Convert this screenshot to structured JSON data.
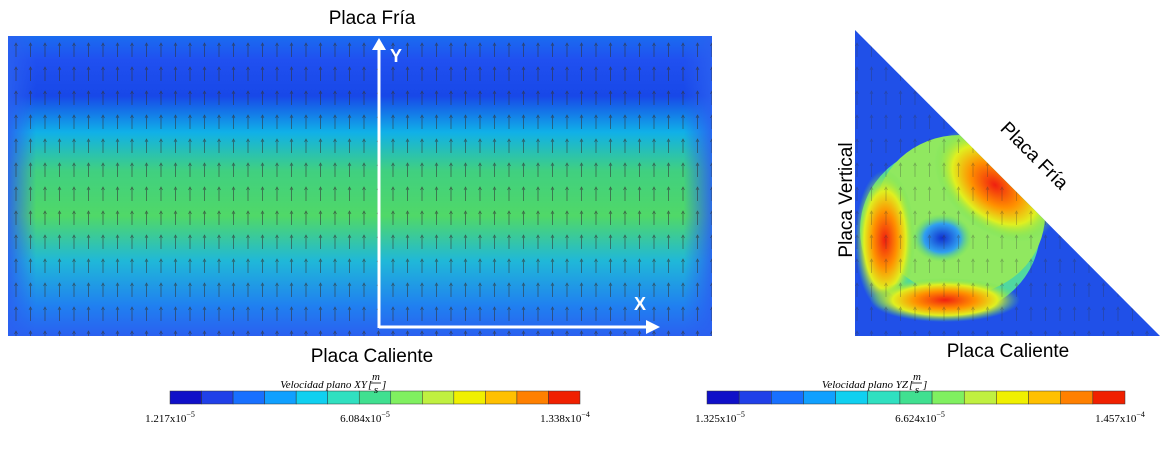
{
  "panels": [
    {
      "top_label": "Placa Fría",
      "bottom_label": "Placa Caliente",
      "y_axis": "Y",
      "x_axis": "X"
    },
    {
      "side_label": "Placa Vertical",
      "diagonal_label": "Placa Fría",
      "bottom_label": "Placa Caliente"
    }
  ],
  "colorbars": [
    {
      "title": "Velocidad plano XY",
      "unit_num": "m",
      "unit_den": "s",
      "ticks": [
        {
          "base": "1.217x10",
          "exp": "−5"
        },
        {
          "base": "6.084x10",
          "exp": "−5"
        },
        {
          "base": "1.338x10",
          "exp": "−4"
        }
      ]
    },
    {
      "title": "Velocidad plano YZ",
      "unit_num": "m",
      "unit_den": "s",
      "ticks": [
        {
          "base": "1.325x10",
          "exp": "−5"
        },
        {
          "base": "6.624x10",
          "exp": "−5"
        },
        {
          "base": "1.457x10",
          "exp": "−4"
        }
      ]
    }
  ]
}
